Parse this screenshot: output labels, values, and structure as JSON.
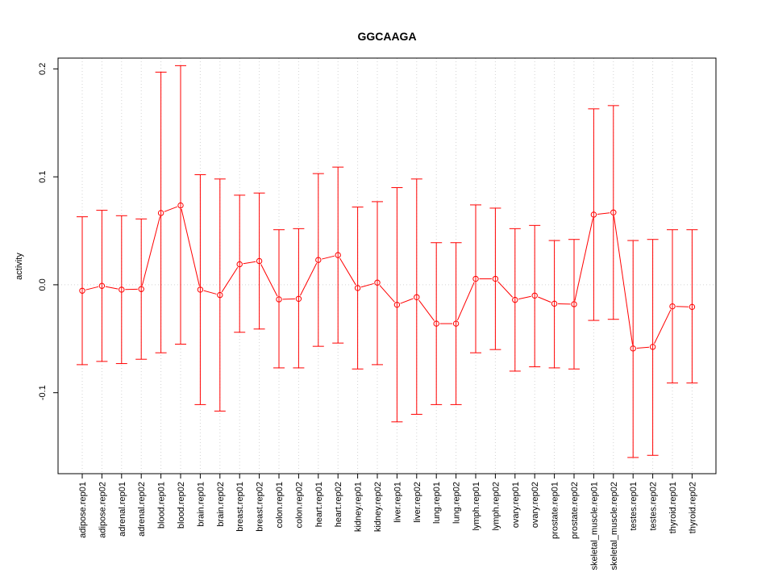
{
  "chart_data": {
    "type": "line",
    "title": "GGCAAGA",
    "xlabel": "",
    "ylabel": "activity",
    "ylim": [
      -0.175,
      0.21
    ],
    "grid": true,
    "series_color": "#ff0000",
    "y_ticks": [
      -0.1,
      0.0,
      0.1,
      0.2
    ],
    "y_tick_labels": [
      "-0.1",
      "0.0",
      "0.1",
      "0.2"
    ],
    "categories": [
      "adipose.rep01",
      "adipose.rep02",
      "adrenal.rep01",
      "adrenal.rep02",
      "blood.rep01",
      "blood.rep02",
      "brain.rep01",
      "brain.rep02",
      "breast.rep01",
      "breast.rep02",
      "colon.rep01",
      "colon.rep02",
      "heart.rep01",
      "heart.rep02",
      "kidney.rep01",
      "kidney.rep02",
      "liver.rep01",
      "liver.rep02",
      "lung.rep01",
      "lung.rep02",
      "lymph.rep01",
      "lymph.rep02",
      "ovary.rep01",
      "ovary.rep02",
      "prostate.rep01",
      "prostate.rep02",
      "skeletal_muscle.rep01",
      "skeletal_muscle.rep02",
      "testes.rep01",
      "testes.rep02",
      "thyroid.rep01",
      "thyroid.rep02"
    ],
    "values": [
      -0.0055,
      -0.001,
      -0.0045,
      -0.004,
      0.0665,
      0.0735,
      -0.0045,
      -0.0095,
      0.019,
      0.022,
      -0.0135,
      -0.013,
      0.023,
      0.0275,
      -0.003,
      0.002,
      -0.0185,
      -0.0115,
      -0.036,
      -0.036,
      0.0055,
      0.0055,
      -0.014,
      -0.01,
      -0.0175,
      -0.018,
      0.065,
      0.067,
      -0.059,
      -0.0575,
      -0.02,
      -0.0205
    ],
    "upper": [
      0.063,
      0.069,
      0.064,
      0.061,
      0.197,
      0.203,
      0.102,
      0.098,
      0.083,
      0.085,
      0.051,
      0.052,
      0.103,
      0.109,
      0.072,
      0.077,
      0.09,
      0.098,
      0.039,
      0.039,
      0.074,
      0.071,
      0.052,
      0.055,
      0.041,
      0.042,
      0.163,
      0.166,
      0.041,
      0.042,
      0.051,
      0.051
    ],
    "lower": [
      -0.074,
      -0.071,
      -0.073,
      -0.069,
      -0.063,
      -0.055,
      -0.111,
      -0.117,
      -0.044,
      -0.041,
      -0.077,
      -0.077,
      -0.057,
      -0.054,
      -0.078,
      -0.074,
      -0.127,
      -0.12,
      -0.111,
      -0.111,
      -0.063,
      -0.06,
      -0.08,
      -0.076,
      -0.077,
      -0.078,
      -0.033,
      -0.032,
      -0.16,
      -0.158,
      -0.091,
      -0.091
    ]
  }
}
